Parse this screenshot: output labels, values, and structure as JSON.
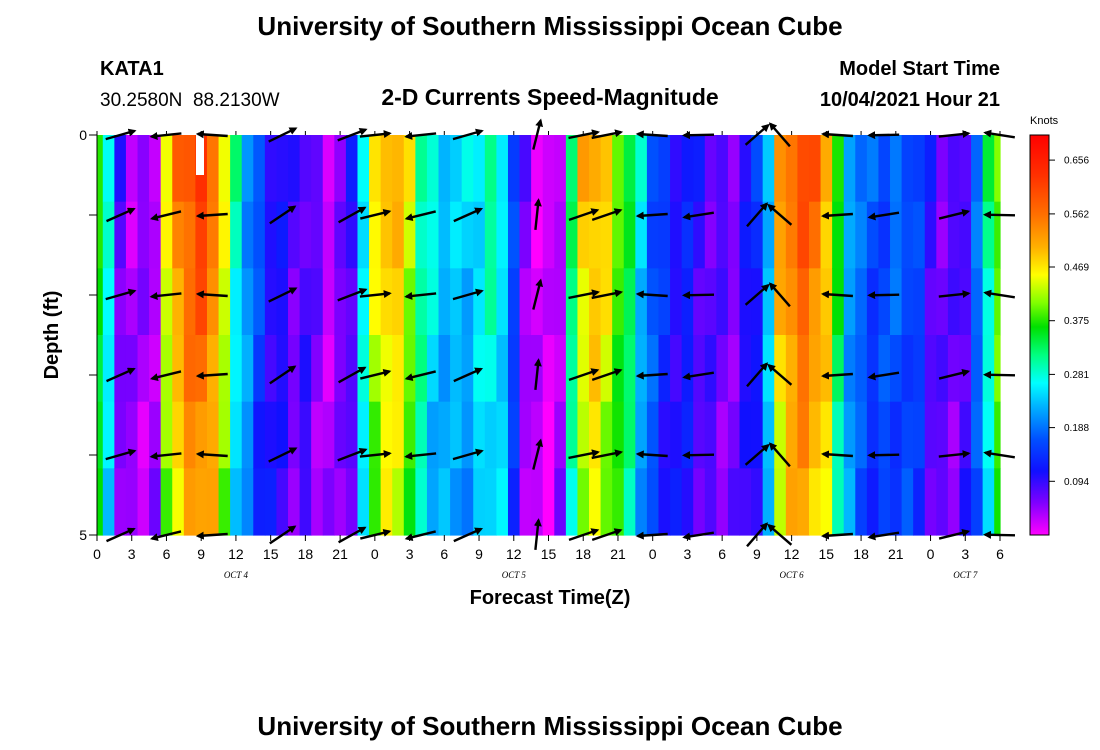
{
  "header": {
    "title": "University of Southern Mississippi Ocean Cube",
    "station_name": "KATA1",
    "station_coords": "30.2580N  88.2130W",
    "subtitle": "2-D Currents Speed-Magnitude",
    "model_label": "Model Start Time",
    "model_time": "10/04/2021 Hour 21"
  },
  "footer": {
    "title": "University of Southern Mississippi Ocean Cube"
  },
  "colorbar": {
    "unit": "Knots",
    "ticks": [
      "0.656",
      "0.562",
      "0.469",
      "0.375",
      "0.281",
      "0.188",
      "0.094"
    ],
    "tick_values": [
      0.656,
      0.562,
      0.469,
      0.375,
      0.281,
      0.188,
      0.094
    ],
    "range": [
      0.0,
      0.7
    ],
    "colors": [
      "#ff00ff",
      "#8000ff",
      "#1010ff",
      "#0050ff",
      "#00b0ff",
      "#00ffff",
      "#00ff80",
      "#00e000",
      "#80ff00",
      "#ffff00",
      "#ffb000",
      "#ff7000",
      "#ff3000",
      "#ff0000"
    ]
  },
  "chart_data": {
    "type": "heatmap",
    "title": "2-D Currents Speed-Magnitude",
    "xlabel": "Forecast Time(Z)",
    "ylabel": "Depth (ft)",
    "x_tick_labels": [
      "0",
      "3",
      "6",
      "9",
      "12",
      "15",
      "18",
      "21",
      "0",
      "3",
      "6",
      "9",
      "12",
      "15",
      "18",
      "21",
      "0",
      "3",
      "6",
      "9",
      "12",
      "15",
      "18",
      "21",
      "0",
      "3",
      "6"
    ],
    "x_ticks_hours": [
      0,
      3,
      6,
      9,
      12,
      15,
      18,
      21,
      24,
      27,
      30,
      33,
      36,
      39,
      42,
      45,
      48,
      51,
      54,
      57,
      60,
      63,
      66,
      69,
      72,
      75,
      78
    ],
    "day_labels": [
      {
        "label": "OCT 4",
        "hour": 12
      },
      {
        "label": "OCT 5",
        "hour": 36
      },
      {
        "label": "OCT 6",
        "hour": 60
      },
      {
        "label": "OCT 7",
        "hour": 75
      }
    ],
    "y_tick_labels": [
      "0",
      "5"
    ],
    "ylim": [
      0,
      5
    ],
    "xlim": [
      0,
      78
    ],
    "depth_levels": [
      0,
      1,
      2,
      3,
      4,
      5
    ],
    "speed_profile_hours": [
      0,
      1,
      2,
      3,
      4,
      5,
      6,
      7,
      8,
      9,
      10,
      11,
      12,
      13,
      14,
      15,
      16,
      17,
      18,
      19,
      20,
      21,
      22,
      23,
      24,
      25,
      26,
      27,
      28,
      29,
      30,
      31,
      32,
      33,
      34,
      35,
      36,
      37,
      38,
      39,
      40,
      41,
      42,
      43,
      44,
      45,
      46,
      47,
      48,
      49,
      50,
      51,
      52,
      53,
      54,
      55,
      56,
      57,
      58,
      59,
      60,
      61,
      62,
      63,
      64,
      65,
      66,
      67,
      68,
      69,
      70,
      71,
      72,
      73,
      74,
      75,
      76,
      77,
      78
    ],
    "speed_profile_knots": [
      0.4,
      0.27,
      0.08,
      0.04,
      0.04,
      0.05,
      0.45,
      0.56,
      0.6,
      0.62,
      0.58,
      0.45,
      0.3,
      0.22,
      0.16,
      0.12,
      0.1,
      0.08,
      0.09,
      0.06,
      0.04,
      0.05,
      0.1,
      0.28,
      0.46,
      0.52,
      0.5,
      0.45,
      0.32,
      0.27,
      0.25,
      0.24,
      0.25,
      0.27,
      0.3,
      0.28,
      0.15,
      0.06,
      0.02,
      0.01,
      0.05,
      0.32,
      0.5,
      0.52,
      0.48,
      0.42,
      0.34,
      0.26,
      0.18,
      0.14,
      0.12,
      0.12,
      0.1,
      0.08,
      0.07,
      0.07,
      0.1,
      0.14,
      0.25,
      0.52,
      0.58,
      0.6,
      0.58,
      0.52,
      0.36,
      0.24,
      0.18,
      0.17,
      0.17,
      0.18,
      0.18,
      0.15,
      0.1,
      0.07,
      0.07,
      0.1,
      0.18,
      0.32,
      0.42
    ],
    "arrow_depths": [
      0,
      1,
      2,
      3,
      4,
      5
    ],
    "arrow_hours": [
      2,
      6,
      10,
      16,
      22,
      24,
      28,
      32,
      38,
      42,
      44,
      48,
      52,
      57,
      59,
      64,
      68,
      74,
      78
    ],
    "arrow_directions_deg": [
      20,
      190,
      180,
      30,
      25,
      10,
      190,
      20,
      80,
      15,
      15,
      180,
      185,
      45,
      135,
      180,
      185,
      10,
      175
    ],
    "colorbar_unit": "Knots"
  }
}
